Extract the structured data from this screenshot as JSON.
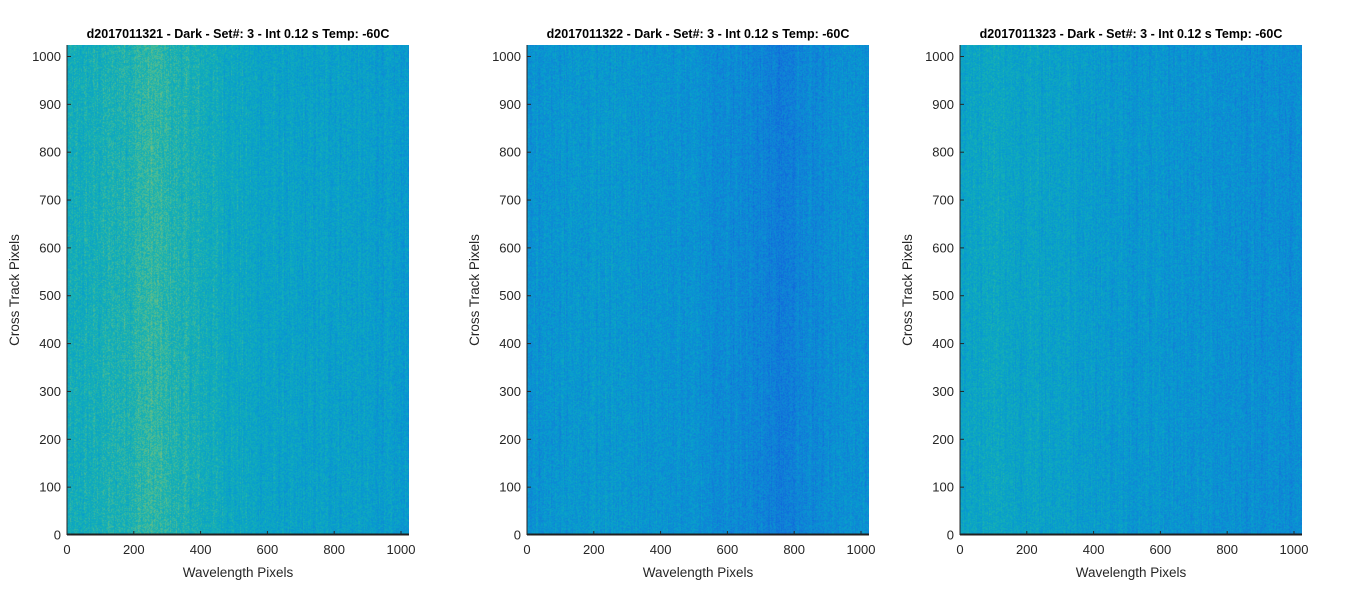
{
  "chart_data": [
    {
      "type": "heatmap",
      "title": "d2017011321 - Dark - Set#: 3 - Int 0.12 s Temp: -60C",
      "xlabel": "Wavelength Pixels",
      "ylabel": "Cross Track Pixels",
      "xlim": [
        0,
        1024
      ],
      "ylim": [
        0,
        1024
      ],
      "xticks": [
        0,
        200,
        400,
        600,
        800,
        1000
      ],
      "yticks": [
        0,
        100,
        200,
        300,
        400,
        500,
        600,
        700,
        800,
        900,
        1000
      ],
      "colormap": "parula",
      "column_profile": {
        "x": [
          0,
          100,
          200,
          250,
          300,
          400,
          500,
          600,
          700,
          800,
          900,
          1024
        ],
        "level": [
          0.55,
          0.58,
          0.62,
          0.65,
          0.62,
          0.57,
          0.53,
          0.5,
          0.48,
          0.49,
          0.47,
          0.45
        ]
      }
    },
    {
      "type": "heatmap",
      "title": "d2017011322 - Dark - Set#: 3 - Int 0.12 s Temp: -60C",
      "xlabel": "Wavelength Pixels",
      "ylabel": "Cross Track Pixels",
      "xlim": [
        0,
        1024
      ],
      "ylim": [
        0,
        1024
      ],
      "xticks": [
        0,
        200,
        400,
        600,
        800,
        1000
      ],
      "yticks": [
        0,
        100,
        200,
        300,
        400,
        500,
        600,
        700,
        800,
        900,
        1000
      ],
      "colormap": "parula",
      "column_profile": {
        "x": [
          0,
          100,
          200,
          300,
          400,
          500,
          600,
          700,
          760,
          800,
          900,
          1024
        ],
        "level": [
          0.4,
          0.43,
          0.44,
          0.43,
          0.42,
          0.4,
          0.37,
          0.34,
          0.3,
          0.33,
          0.38,
          0.4
        ]
      }
    },
    {
      "type": "heatmap",
      "title": "d2017011323 - Dark - Set#: 3 - Int 0.12 s Temp: -60C",
      "xlabel": "Wavelength Pixels",
      "ylabel": "Cross Track Pixels",
      "xlim": [
        0,
        1024
      ],
      "ylim": [
        0,
        1024
      ],
      "xticks": [
        0,
        200,
        400,
        600,
        800,
        1000
      ],
      "yticks": [
        0,
        100,
        200,
        300,
        400,
        500,
        600,
        700,
        800,
        900,
        1000
      ],
      "colormap": "parula",
      "column_profile": {
        "x": [
          0,
          100,
          200,
          300,
          400,
          500,
          600,
          700,
          800,
          900,
          1024
        ],
        "level": [
          0.5,
          0.52,
          0.5,
          0.49,
          0.46,
          0.43,
          0.42,
          0.41,
          0.4,
          0.39,
          0.38
        ]
      }
    }
  ]
}
